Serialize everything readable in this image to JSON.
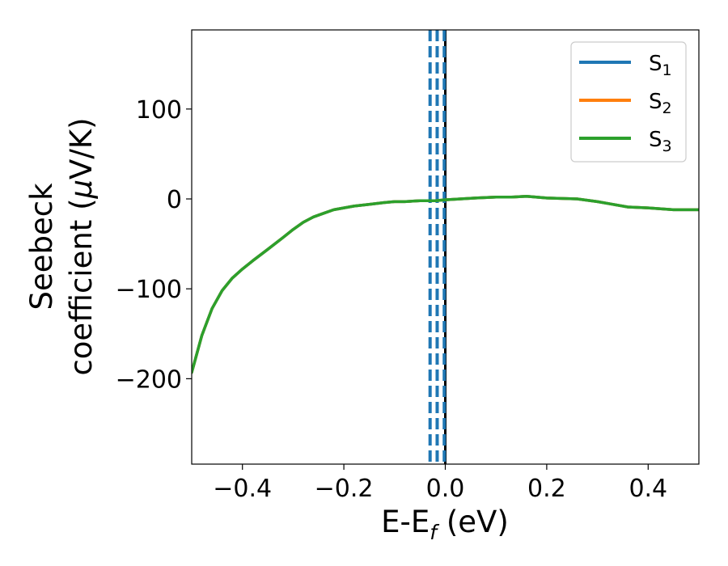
{
  "chart_data": {
    "type": "line",
    "title": "",
    "xlabel": "E-E",
    "xlabel_sub": "f",
    "xlabel_unit": " (eV)",
    "ylabel_line1": "Seebeck",
    "ylabel_line2_prefix": "coefficient  (",
    "ylabel_mu": "μ",
    "ylabel_line2_suffix": "V/K)",
    "xlim": [
      -0.5,
      0.5
    ],
    "ylim": [
      -295,
      188
    ],
    "xticks": [
      {
        "value": -0.4,
        "label": "−0.4"
      },
      {
        "value": -0.2,
        "label": "−0.2"
      },
      {
        "value": 0.0,
        "label": "0.0"
      },
      {
        "value": 0.2,
        "label": "0.2"
      },
      {
        "value": 0.4,
        "label": "0.4"
      }
    ],
    "yticks": [
      {
        "value": -200,
        "label": "−200"
      },
      {
        "value": -100,
        "label": "−100"
      },
      {
        "value": 0,
        "label": "0"
      },
      {
        "value": 100,
        "label": "100"
      }
    ],
    "grid": false,
    "legend_position": "top-right",
    "series": [
      {
        "name": "S",
        "name_sub": "1",
        "color": "#1f77b4",
        "x": [
          -0.5,
          -0.48,
          -0.46,
          -0.44,
          -0.42,
          -0.4,
          -0.38,
          -0.35,
          -0.32,
          -0.3,
          -0.28,
          -0.26,
          -0.24,
          -0.22,
          -0.2,
          -0.18,
          -0.15,
          -0.12,
          -0.1,
          -0.08,
          -0.05,
          -0.02,
          0.0,
          0.03,
          0.06,
          0.1,
          0.13,
          0.16,
          0.2,
          0.26,
          0.3,
          0.33,
          0.36,
          0.4,
          0.45,
          0.48,
          0.5
        ],
        "y": [
          -193,
          -152,
          -122,
          -102,
          -88,
          -78,
          -69,
          -56,
          -43,
          -34,
          -26,
          -20,
          -16,
          -12,
          -10,
          -8,
          -6,
          -4,
          -3,
          -3,
          -2,
          -2,
          -1,
          0,
          1,
          2,
          2,
          3,
          1,
          0,
          -3,
          -6,
          -9,
          -10,
          -12,
          -12,
          -12
        ]
      },
      {
        "name": "S",
        "name_sub": "2",
        "color": "#ff7f0e",
        "x": [
          -0.5,
          -0.48,
          -0.46,
          -0.44,
          -0.42,
          -0.4,
          -0.38,
          -0.35,
          -0.32,
          -0.3,
          -0.28,
          -0.26,
          -0.24,
          -0.22,
          -0.2,
          -0.18,
          -0.15,
          -0.12,
          -0.1,
          -0.08,
          -0.05,
          -0.02,
          0.0,
          0.03,
          0.06,
          0.1,
          0.13,
          0.16,
          0.2,
          0.26,
          0.3,
          0.33,
          0.36,
          0.4,
          0.45,
          0.48,
          0.5
        ],
        "y": [
          -193,
          -152,
          -122,
          -102,
          -88,
          -78,
          -69,
          -56,
          -43,
          -34,
          -26,
          -20,
          -16,
          -12,
          -10,
          -8,
          -6,
          -4,
          -3,
          -3,
          -2,
          -2,
          -1,
          0,
          1,
          2,
          2,
          3,
          1,
          0,
          -3,
          -6,
          -9,
          -10,
          -12,
          -12,
          -12
        ]
      },
      {
        "name": "S",
        "name_sub": "3",
        "color": "#2ca02c",
        "x": [
          -0.5,
          -0.48,
          -0.46,
          -0.44,
          -0.42,
          -0.4,
          -0.38,
          -0.35,
          -0.32,
          -0.3,
          -0.28,
          -0.26,
          -0.24,
          -0.22,
          -0.2,
          -0.18,
          -0.15,
          -0.12,
          -0.1,
          -0.08,
          -0.05,
          -0.02,
          0.0,
          0.03,
          0.06,
          0.1,
          0.13,
          0.16,
          0.2,
          0.26,
          0.3,
          0.33,
          0.36,
          0.4,
          0.45,
          0.48,
          0.5
        ],
        "y": [
          -193,
          -152,
          -122,
          -102,
          -88,
          -78,
          -69,
          -56,
          -43,
          -34,
          -26,
          -20,
          -16,
          -12,
          -10,
          -8,
          -6,
          -4,
          -3,
          -3,
          -2,
          -2,
          -1,
          0,
          1,
          2,
          2,
          3,
          1,
          0,
          -3,
          -6,
          -9,
          -10,
          -12,
          -12,
          -12
        ]
      }
    ],
    "vertical_lines": [
      {
        "x": 0.0,
        "color": "#000000",
        "style": "solid"
      },
      {
        "x": -0.03,
        "color": "#1f77b4",
        "style": "dashed"
      },
      {
        "x": -0.016,
        "color": "#1f77b4",
        "style": "dashed"
      },
      {
        "x": -0.002,
        "color": "#1f77b4",
        "style": "dashed"
      }
    ]
  }
}
